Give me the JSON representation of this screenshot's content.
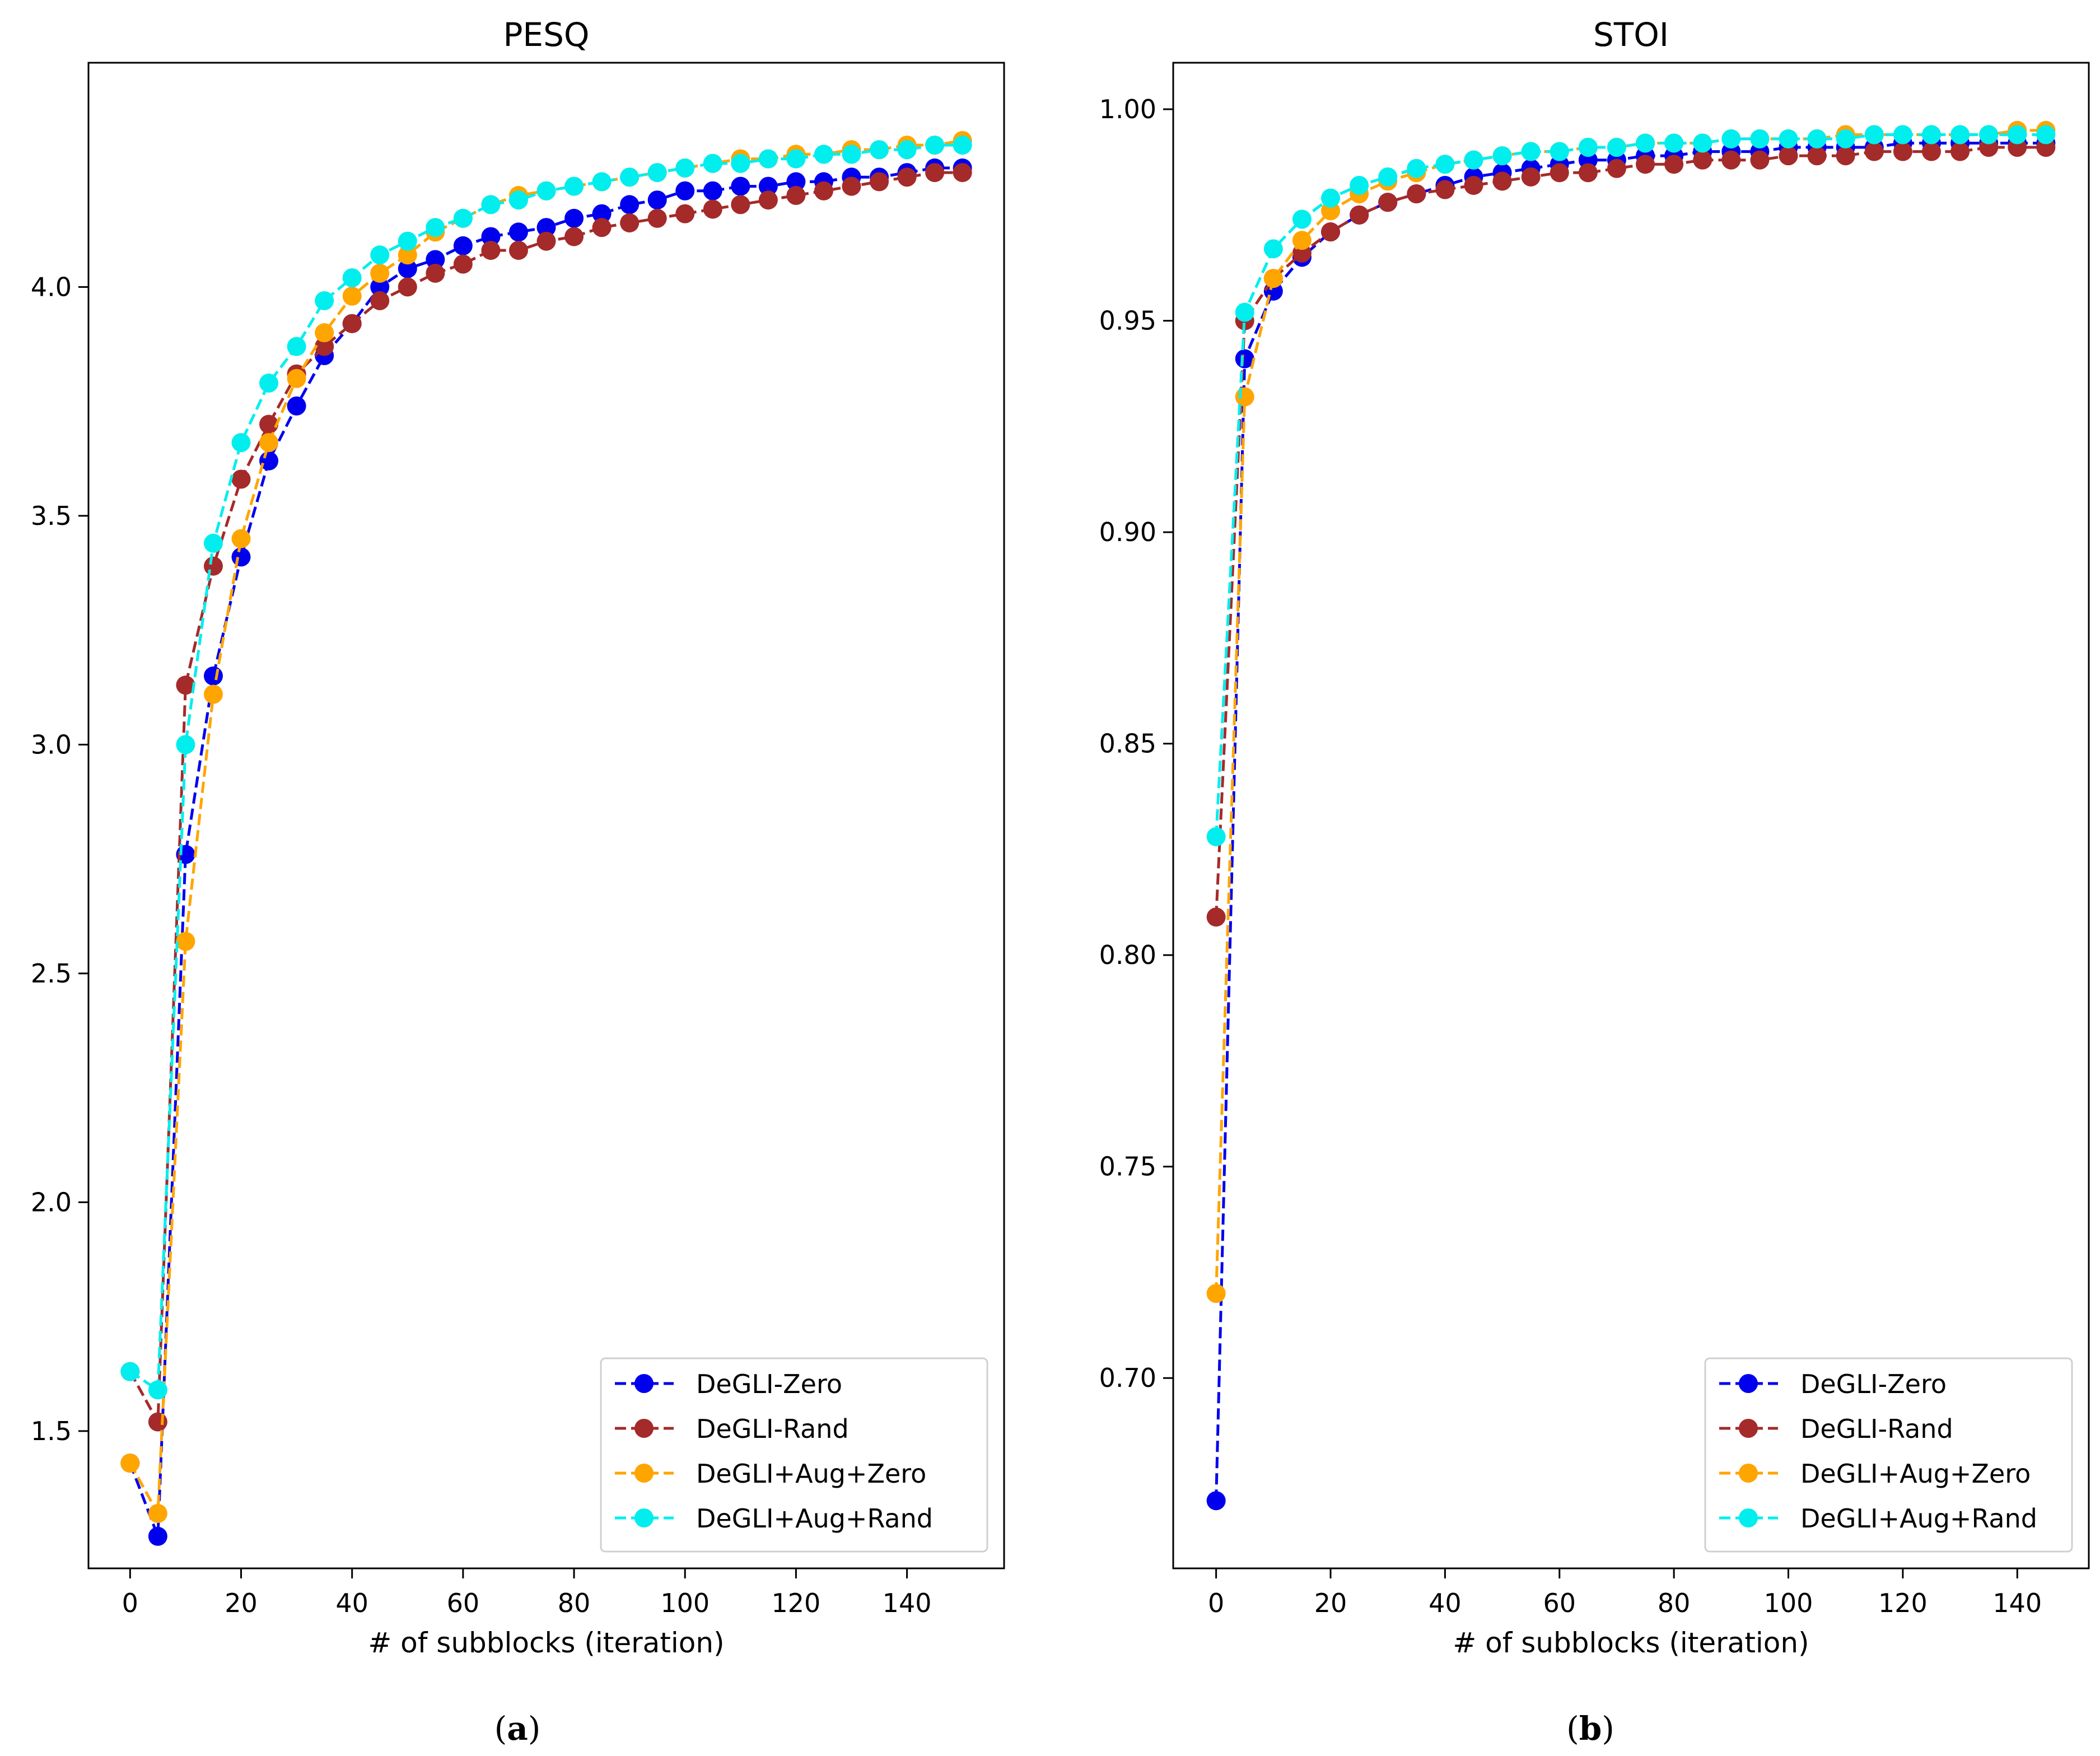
{
  "figure": {
    "panel_labels": [
      {
        "open": "(",
        "letter": "a",
        "close": ")"
      },
      {
        "open": "(",
        "letter": "b",
        "close": ")"
      }
    ]
  },
  "chart_data": [
    {
      "type": "line",
      "title": "PESQ",
      "xlabel": "# of subblocks (iteration)",
      "ylabel": "",
      "xlim": [
        -7.5,
        157.5
      ],
      "ylim": [
        1.2,
        4.49
      ],
      "xticks": [
        0,
        20,
        40,
        60,
        80,
        100,
        120,
        140
      ],
      "yticks": [
        1.5,
        2.0,
        2.5,
        3.0,
        3.5,
        4.0
      ],
      "ytick_labels": [
        "1.5",
        "2.0",
        "2.5",
        "3.0",
        "3.5",
        "4.0"
      ],
      "legend": "lower-right",
      "x": [
        0,
        5,
        10,
        15,
        20,
        25,
        30,
        35,
        40,
        45,
        50,
        55,
        60,
        65,
        70,
        75,
        80,
        85,
        90,
        95,
        100,
        105,
        110,
        115,
        120,
        125,
        130,
        135,
        140,
        145,
        150
      ],
      "series": [
        {
          "name": "DeGLI-Zero",
          "color": "#0000ee",
          "values": [
            1.43,
            1.27,
            2.76,
            3.15,
            3.41,
            3.62,
            3.74,
            3.85,
            3.92,
            4.0,
            4.04,
            4.06,
            4.09,
            4.11,
            4.12,
            4.13,
            4.15,
            4.16,
            4.18,
            4.19,
            4.21,
            4.21,
            4.22,
            4.22,
            4.23,
            4.23,
            4.24,
            4.24,
            4.25,
            4.26,
            4.26
          ]
        },
        {
          "name": "DeGLI-Rand",
          "color": "#a52a2a",
          "values": [
            1.63,
            1.52,
            3.13,
            3.39,
            3.58,
            3.7,
            3.81,
            3.87,
            3.92,
            3.97,
            4.0,
            4.03,
            4.05,
            4.08,
            4.08,
            4.1,
            4.11,
            4.13,
            4.14,
            4.15,
            4.16,
            4.17,
            4.18,
            4.19,
            4.2,
            4.21,
            4.22,
            4.23,
            4.24,
            4.25,
            4.25
          ]
        },
        {
          "name": "DeGLI+Aug+Zero",
          "color": "#ffa500",
          "values": [
            1.43,
            1.32,
            2.57,
            3.11,
            3.45,
            3.66,
            3.8,
            3.9,
            3.98,
            4.03,
            4.07,
            4.12,
            4.15,
            4.18,
            4.2,
            4.21,
            4.22,
            4.23,
            4.24,
            4.25,
            4.26,
            4.27,
            4.28,
            4.28,
            4.29,
            4.29,
            4.3,
            4.3,
            4.31,
            4.31,
            4.32
          ]
        },
        {
          "name": "DeGLI+Aug+Rand",
          "color": "#00eeee",
          "values": [
            1.63,
            1.59,
            3.0,
            3.44,
            3.66,
            3.79,
            3.87,
            3.97,
            4.02,
            4.07,
            4.1,
            4.13,
            4.15,
            4.18,
            4.19,
            4.21,
            4.22,
            4.23,
            4.24,
            4.25,
            4.26,
            4.27,
            4.27,
            4.28,
            4.28,
            4.29,
            4.29,
            4.3,
            4.3,
            4.31,
            4.31
          ]
        }
      ]
    },
    {
      "type": "line",
      "title": "STOI",
      "xlabel": "# of subblocks (iteration)",
      "ylabel": "",
      "xlim": [
        -7.5,
        152.5
      ],
      "ylim": [
        0.655,
        1.011
      ],
      "xticks": [
        0,
        20,
        40,
        60,
        80,
        100,
        120,
        140
      ],
      "yticks": [
        0.7,
        0.75,
        0.8,
        0.85,
        0.9,
        0.95,
        1.0
      ],
      "ytick_labels": [
        "0.70",
        "0.75",
        "0.80",
        "0.85",
        "0.90",
        "0.95",
        "1.00"
      ],
      "legend": "lower-right",
      "x": [
        0,
        5,
        10,
        15,
        20,
        25,
        30,
        35,
        40,
        45,
        50,
        55,
        60,
        65,
        70,
        75,
        80,
        85,
        90,
        95,
        100,
        105,
        110,
        115,
        120,
        125,
        130,
        135,
        140,
        145
      ],
      "series": [
        {
          "name": "DeGLI-Zero",
          "color": "#0000ee",
          "values": [
            0.671,
            0.941,
            0.957,
            0.965,
            0.971,
            0.975,
            0.978,
            0.98,
            0.982,
            0.984,
            0.985,
            0.986,
            0.987,
            0.988,
            0.988,
            0.989,
            0.989,
            0.99,
            0.99,
            0.99,
            0.991,
            0.991,
            0.991,
            0.991,
            0.992,
            0.992,
            0.992,
            0.992,
            0.992,
            0.992
          ]
        },
        {
          "name": "DeGLI-Rand",
          "color": "#a52a2a",
          "values": [
            0.809,
            0.95,
            0.96,
            0.966,
            0.971,
            0.975,
            0.978,
            0.98,
            0.981,
            0.982,
            0.983,
            0.984,
            0.985,
            0.985,
            0.986,
            0.987,
            0.987,
            0.988,
            0.988,
            0.988,
            0.989,
            0.989,
            0.989,
            0.99,
            0.99,
            0.99,
            0.99,
            0.991,
            0.991,
            0.991
          ]
        },
        {
          "name": "DeGLI+Aug+Zero",
          "color": "#ffa500",
          "values": [
            0.72,
            0.932,
            0.96,
            0.969,
            0.976,
            0.98,
            0.983,
            0.985,
            0.987,
            0.988,
            0.989,
            0.99,
            0.99,
            0.991,
            0.991,
            0.992,
            0.992,
            0.992,
            0.993,
            0.993,
            0.993,
            0.993,
            0.994,
            0.994,
            0.994,
            0.994,
            0.994,
            0.994,
            0.995,
            0.995
          ]
        },
        {
          "name": "DeGLI+Aug+Rand",
          "color": "#00eeee",
          "values": [
            0.828,
            0.952,
            0.967,
            0.974,
            0.979,
            0.982,
            0.984,
            0.986,
            0.987,
            0.988,
            0.989,
            0.99,
            0.99,
            0.991,
            0.991,
            0.992,
            0.992,
            0.992,
            0.993,
            0.993,
            0.993,
            0.993,
            0.993,
            0.994,
            0.994,
            0.994,
            0.994,
            0.994,
            0.994,
            0.994
          ]
        }
      ]
    }
  ]
}
